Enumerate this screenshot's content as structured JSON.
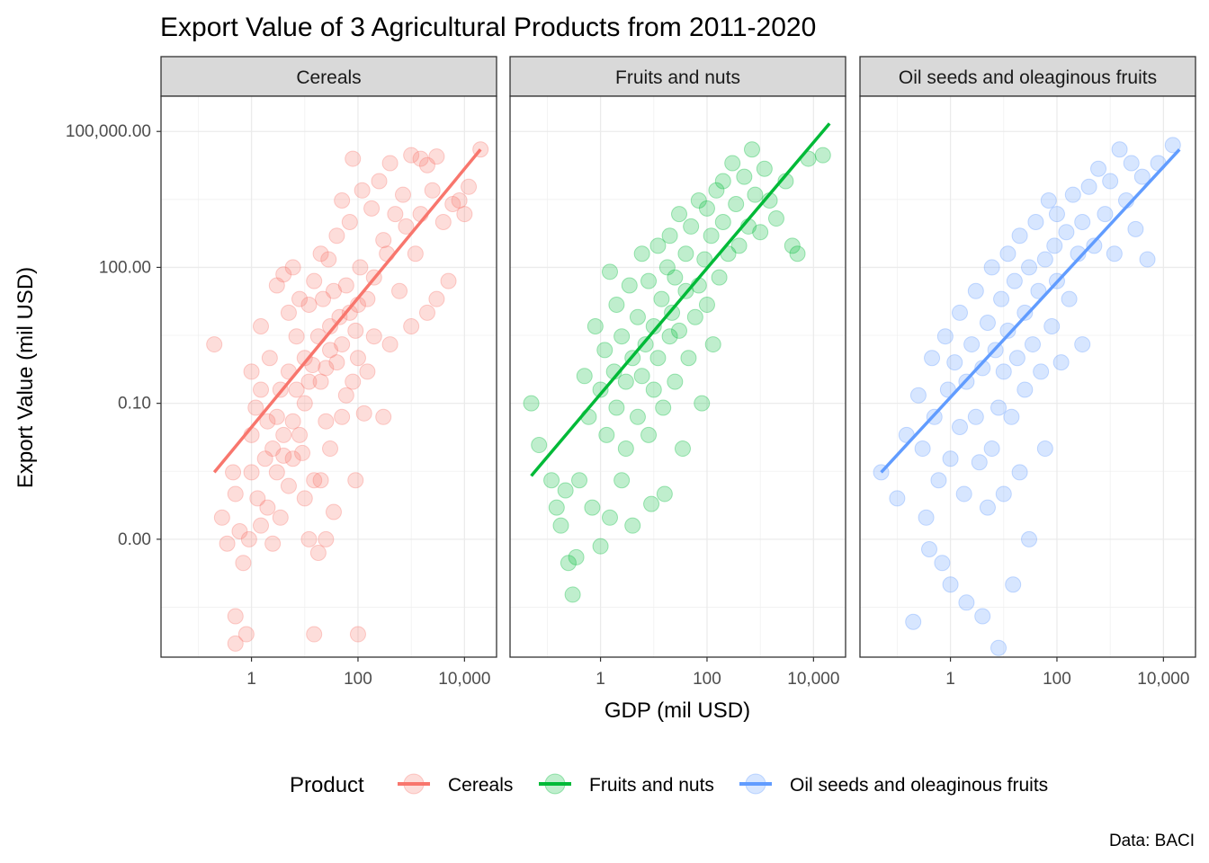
{
  "chart_data": {
    "type": "scatter",
    "title": "Export Value of 3 Agricultural Products from 2011-2020",
    "xlabel": "GDP (mil USD)",
    "ylabel": "Export Value (mil USD)",
    "caption": "Data: BACI",
    "x_scale": "log10",
    "y_scale": "log10",
    "xlim": [
      0.02,
      40000
    ],
    "ylim": [
      2.5e-07,
      600000
    ],
    "x_ticks": [
      1,
      100,
      10000
    ],
    "x_tick_labels": [
      "1",
      "100",
      "10,000"
    ],
    "y_ticks": [
      0.0001,
      0.1,
      100,
      100000
    ],
    "y_tick_labels": [
      "0.00",
      "0.10",
      "100.00",
      "100,000.00"
    ],
    "grid": true,
    "legend": {
      "title": "Product",
      "position": "bottom",
      "entries": [
        "Cereals",
        "Fruits and nuts",
        "Oil seeds and oleaginous fruits"
      ]
    },
    "point_alpha": 0.25,
    "series": [
      {
        "name": "Cereals",
        "color": "#F8766D",
        "fit_line": {
          "x": [
            0.2,
            20000
          ],
          "y": [
            0.003,
            40000
          ]
        },
        "points": [
          [
            0.2,
            2.0
          ],
          [
            0.28,
            0.0003
          ],
          [
            0.35,
            8e-05
          ],
          [
            0.45,
            0.003
          ],
          [
            0.5,
            0.001
          ],
          [
            0.5,
            2e-06
          ],
          [
            0.5,
            5e-07
          ],
          [
            0.6,
            0.00015
          ],
          [
            0.7,
            3e-05
          ],
          [
            0.8,
            8e-07
          ],
          [
            0.9,
            0.0001
          ],
          [
            1.0,
            0.003
          ],
          [
            1.0,
            0.02
          ],
          [
            1.0,
            0.5
          ],
          [
            1.2,
            0.08
          ],
          [
            1.3,
            0.0008
          ],
          [
            1.5,
            5.0
          ],
          [
            1.5,
            0.2
          ],
          [
            1.5,
            0.0002
          ],
          [
            1.8,
            0.006
          ],
          [
            2.0,
            0.04
          ],
          [
            2.0,
            0.0005
          ],
          [
            2.2,
            1.0
          ],
          [
            2.5,
            0.01
          ],
          [
            2.5,
            8e-05
          ],
          [
            3.0,
            0.05
          ],
          [
            3.0,
            0.003
          ],
          [
            3.0,
            40.0
          ],
          [
            3.5,
            0.2
          ],
          [
            3.5,
            0.0003
          ],
          [
            4.0,
            0.02
          ],
          [
            4.0,
            0.007
          ],
          [
            4.0,
            70.0
          ],
          [
            5.0,
            0.5
          ],
          [
            5.0,
            0.0015
          ],
          [
            5.0,
            10.0
          ],
          [
            6.0,
            0.04
          ],
          [
            6.0,
            0.006
          ],
          [
            6.0,
            100.0
          ],
          [
            7.0,
            3.0
          ],
          [
            7.0,
            0.2
          ],
          [
            8.0,
            0.02
          ],
          [
            8.0,
            20.0
          ],
          [
            9.0,
            0.008
          ],
          [
            10.0,
            1.0
          ],
          [
            10.0,
            0.1
          ],
          [
            10.0,
            0.0008
          ],
          [
            12.0,
            15.0
          ],
          [
            12.0,
            0.3
          ],
          [
            12.0,
            0.0001
          ],
          [
            14.0,
            0.7
          ],
          [
            15.0,
            50.0
          ],
          [
            15.0,
            0.002
          ],
          [
            15.0,
            8e-07
          ],
          [
            18.0,
            3.0
          ],
          [
            18.0,
            5e-05
          ],
          [
            20.0,
            0.3
          ],
          [
            20.0,
            0.002
          ],
          [
            20.0,
            200.0
          ],
          [
            22.0,
            20.0
          ],
          [
            25.0,
            0.6
          ],
          [
            25.0,
            0.04
          ],
          [
            25.0,
            0.0001
          ],
          [
            28.0,
            150.0
          ],
          [
            30.0,
            1.5
          ],
          [
            30.0,
            5.0
          ],
          [
            30.0,
            0.01
          ],
          [
            35.0,
            30.0
          ],
          [
            35.0,
            0.0004
          ],
          [
            40.0,
            0.8
          ],
          [
            40.0,
            500.0
          ],
          [
            45.0,
            8.0
          ],
          [
            50.0,
            2.0
          ],
          [
            50.0,
            0.05
          ],
          [
            50.0,
            3000.0
          ],
          [
            60.0,
            40.0
          ],
          [
            60.0,
            0.15
          ],
          [
            70.0,
            10.0
          ],
          [
            70.0,
            1000.0
          ],
          [
            80.0,
            0.3
          ],
          [
            80.0,
            25000.0
          ],
          [
            90.0,
            4.0
          ],
          [
            90.0,
            0.002
          ],
          [
            100.0,
            8e-07
          ],
          [
            100.0,
            15.0
          ],
          [
            100.0,
            1.0
          ],
          [
            110.0,
            100.0
          ],
          [
            120.0,
            5000.0
          ],
          [
            130.0,
            0.06
          ],
          [
            150.0,
            20.0
          ],
          [
            150.0,
            0.5
          ],
          [
            180.0,
            2000.0
          ],
          [
            200.0,
            60.0
          ],
          [
            200.0,
            3.0
          ],
          [
            250.0,
            8000.0
          ],
          [
            300.0,
            400.0
          ],
          [
            300.0,
            0.05
          ],
          [
            350.0,
            200.0
          ],
          [
            400.0,
            2.0
          ],
          [
            400.0,
            20000.0
          ],
          [
            500.0,
            1500.0
          ],
          [
            600.0,
            30.0
          ],
          [
            700.0,
            4000.0
          ],
          [
            800.0,
            800.0
          ],
          [
            1000.0,
            30000.0
          ],
          [
            1000.0,
            5.0
          ],
          [
            1200.0,
            200.0
          ],
          [
            1500.0,
            25000.0
          ],
          [
            1500.0,
            1500.0
          ],
          [
            2000.0,
            10.0
          ],
          [
            2000.0,
            18000.0
          ],
          [
            2500.0,
            5000.0
          ],
          [
            3000.0,
            20.0
          ],
          [
            3000.0,
            28000.0
          ],
          [
            4000.0,
            1000.0
          ],
          [
            5000.0,
            50.0
          ],
          [
            6000.0,
            2500.0
          ],
          [
            8000.0,
            3000.0
          ],
          [
            10000.0,
            1500.0
          ],
          [
            12000.0,
            6000.0
          ],
          [
            20000.0,
            40000.0
          ]
        ]
      },
      {
        "name": "Fruits and nuts",
        "color": "#00BA38",
        "fit_line": {
          "x": [
            0.05,
            20000
          ],
          "y": [
            0.0025,
            150000
          ]
        },
        "points": [
          [
            0.05,
            0.1
          ],
          [
            0.07,
            0.012
          ],
          [
            0.12,
            0.002
          ],
          [
            0.15,
            0.0005
          ],
          [
            0.18,
            0.0002
          ],
          [
            0.22,
            0.0012
          ],
          [
            0.25,
            3e-05
          ],
          [
            0.3,
            6e-06
          ],
          [
            0.35,
            4e-05
          ],
          [
            0.4,
            0.002
          ],
          [
            0.5,
            0.4
          ],
          [
            0.6,
            0.05
          ],
          [
            0.7,
            0.0005
          ],
          [
            0.8,
            5.0
          ],
          [
            1.0,
            0.2
          ],
          [
            1.0,
            7e-05
          ],
          [
            1.2,
            1.5
          ],
          [
            1.3,
            0.02
          ],
          [
            1.5,
            80.0
          ],
          [
            1.5,
            0.0003
          ],
          [
            1.8,
            0.5
          ],
          [
            2.0,
            0.08
          ],
          [
            2.0,
            15.0
          ],
          [
            2.5,
            3.0
          ],
          [
            2.5,
            0.002
          ],
          [
            3.0,
            0.01
          ],
          [
            3.0,
            0.3
          ],
          [
            3.5,
            40.0
          ],
          [
            4.0,
            1.0
          ],
          [
            4.0,
            0.0002
          ],
          [
            5.0,
            0.05
          ],
          [
            5.0,
            8.0
          ],
          [
            6.0,
            200.0
          ],
          [
            6.0,
            0.4
          ],
          [
            7.0,
            2.0
          ],
          [
            8.0,
            0.02
          ],
          [
            8.0,
            50.0
          ],
          [
            9.0,
            0.0006
          ],
          [
            10.0,
            5.0
          ],
          [
            10.0,
            0.2
          ],
          [
            12.0,
            300.0
          ],
          [
            12.0,
            1.0
          ],
          [
            14.0,
            20.0
          ],
          [
            15.0,
            0.08
          ],
          [
            16.0,
            0.001
          ],
          [
            18.0,
            100.0
          ],
          [
            20.0,
            3.0
          ],
          [
            20.0,
            500.0
          ],
          [
            22.0,
            10.0
          ],
          [
            25.0,
            0.3
          ],
          [
            25.0,
            60.0
          ],
          [
            30.0,
            1500.0
          ],
          [
            30.0,
            4.0
          ],
          [
            35.0,
            0.01
          ],
          [
            40.0,
            30.0
          ],
          [
            40.0,
            200.0
          ],
          [
            45.0,
            1.0
          ],
          [
            50.0,
            800.0
          ],
          [
            60.0,
            8.0
          ],
          [
            70.0,
            3000.0
          ],
          [
            70.0,
            40.0
          ],
          [
            80.0,
            0.1
          ],
          [
            90.0,
            150.0
          ],
          [
            100.0,
            15.0
          ],
          [
            100.0,
            2000.0
          ],
          [
            120.0,
            500.0
          ],
          [
            130.0,
            2.0
          ],
          [
            150.0,
            5000.0
          ],
          [
            170.0,
            60.0
          ],
          [
            200.0,
            1000.0
          ],
          [
            200.0,
            8000.0
          ],
          [
            250.0,
            200.0
          ],
          [
            300.0,
            20000.0
          ],
          [
            350.0,
            2500.0
          ],
          [
            400.0,
            300.0
          ],
          [
            500.0,
            10000.0
          ],
          [
            600.0,
            800.0
          ],
          [
            700.0,
            40000.0
          ],
          [
            800.0,
            4000.0
          ],
          [
            1000.0,
            600.0
          ],
          [
            1200.0,
            15000.0
          ],
          [
            1500.0,
            3000.0
          ],
          [
            2000.0,
            1200.0
          ],
          [
            3000.0,
            8000.0
          ],
          [
            4000.0,
            300.0
          ],
          [
            5000.0,
            200.0
          ],
          [
            8000.0,
            25000.0
          ],
          [
            15000.0,
            30000.0
          ]
        ]
      },
      {
        "name": "Oil seeds and oleaginous fruits",
        "color": "#619CFF",
        "fit_line": {
          "x": [
            0.05,
            20000
          ],
          "y": [
            0.003,
            40000
          ]
        },
        "points": [
          [
            0.05,
            0.003
          ],
          [
            0.1,
            0.0008
          ],
          [
            0.15,
            0.02
          ],
          [
            0.2,
            1.5e-06
          ],
          [
            0.25,
            0.15
          ],
          [
            0.3,
            0.01
          ],
          [
            0.35,
            0.0003
          ],
          [
            0.4,
            6e-05
          ],
          [
            0.45,
            1.0
          ],
          [
            0.5,
            0.05
          ],
          [
            0.6,
            0.002
          ],
          [
            0.7,
            3e-05
          ],
          [
            0.8,
            3.0
          ],
          [
            0.9,
            0.2
          ],
          [
            1.0,
            0.006
          ],
          [
            1.0,
            1e-05
          ],
          [
            1.2,
            0.8
          ],
          [
            1.5,
            0.03
          ],
          [
            1.5,
            10.0
          ],
          [
            1.8,
            0.001
          ],
          [
            2.0,
            0.3
          ],
          [
            2.0,
            4e-06
          ],
          [
            2.5,
            2.0
          ],
          [
            3.0,
            0.05
          ],
          [
            3.0,
            30.0
          ],
          [
            3.5,
            0.005
          ],
          [
            4.0,
            2e-06
          ],
          [
            4.0,
            0.6
          ],
          [
            5.0,
            6.0
          ],
          [
            5.0,
            0.0005
          ],
          [
            6.0,
            0.01
          ],
          [
            6.0,
            100.0
          ],
          [
            7.0,
            1.5
          ],
          [
            8.0,
            0.08
          ],
          [
            8.0,
            4e-07
          ],
          [
            9.0,
            20.0
          ],
          [
            10.0,
            0.5
          ],
          [
            10.0,
            0.001
          ],
          [
            12.0,
            200.0
          ],
          [
            12.0,
            4.0
          ],
          [
            14.0,
            0.05
          ],
          [
            15.0,
            1e-05
          ],
          [
            16.0,
            50.0
          ],
          [
            18.0,
            1.0
          ],
          [
            20.0,
            0.003
          ],
          [
            20.0,
            500.0
          ],
          [
            25.0,
            10.0
          ],
          [
            25.0,
            0.2
          ],
          [
            30.0,
            100.0
          ],
          [
            30.0,
            0.0001
          ],
          [
            35.0,
            2.0
          ],
          [
            40.0,
            1000.0
          ],
          [
            45.0,
            30.0
          ],
          [
            50.0,
            0.5
          ],
          [
            60.0,
            150.0
          ],
          [
            60.0,
            0.01
          ],
          [
            70.0,
            3000.0
          ],
          [
            80.0,
            5.0
          ],
          [
            90.0,
            300.0
          ],
          [
            100.0,
            50.0
          ],
          [
            100.0,
            1500.0
          ],
          [
            120.0,
            0.8
          ],
          [
            150.0,
            600.0
          ],
          [
            170.0,
            20.0
          ],
          [
            200.0,
            4000.0
          ],
          [
            250.0,
            200.0
          ],
          [
            300.0,
            1000.0
          ],
          [
            300.0,
            2.0
          ],
          [
            400.0,
            6000.0
          ],
          [
            500.0,
            300.0
          ],
          [
            600.0,
            15000.0
          ],
          [
            800.0,
            1500.0
          ],
          [
            1000.0,
            8000.0
          ],
          [
            1200.0,
            200.0
          ],
          [
            1500.0,
            40000.0
          ],
          [
            2000.0,
            3000.0
          ],
          [
            2500.0,
            20000.0
          ],
          [
            3000.0,
            700.0
          ],
          [
            4000.0,
            10000.0
          ],
          [
            5000.0,
            150.0
          ],
          [
            8000.0,
            20000.0
          ],
          [
            15000.0,
            50000.0
          ]
        ]
      }
    ]
  }
}
